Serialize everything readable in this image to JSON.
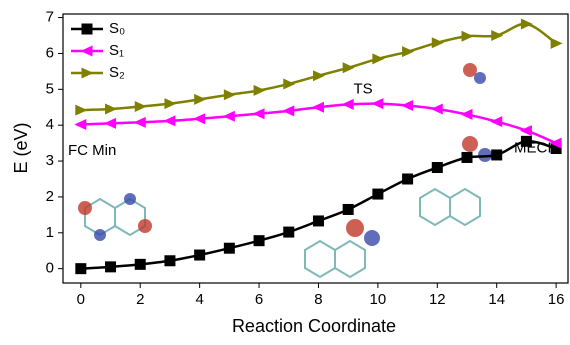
{
  "chart_data": {
    "type": "line",
    "x": [
      0,
      1,
      2,
      3,
      4,
      5,
      6,
      7,
      8,
      9,
      10,
      11,
      12,
      13,
      14,
      15,
      16
    ],
    "series": [
      {
        "name": "S₀",
        "color": "#000000",
        "marker": "square",
        "values": [
          0,
          0.05,
          0.12,
          0.22,
          0.38,
          0.57,
          0.78,
          1.02,
          1.33,
          1.65,
          2.08,
          2.5,
          2.82,
          3.1,
          3.17,
          3.55,
          3.35
        ]
      },
      {
        "name": "S₁",
        "color": "#ff00ff",
        "marker": "triangle-left",
        "values": [
          4.02,
          4.05,
          4.08,
          4.12,
          4.18,
          4.25,
          4.32,
          4.4,
          4.5,
          4.58,
          4.6,
          4.55,
          4.45,
          4.3,
          4.1,
          3.85,
          3.5
        ]
      },
      {
        "name": "S₂",
        "color": "#808000",
        "marker": "triangle-right",
        "values": [
          4.42,
          4.45,
          4.52,
          4.6,
          4.72,
          4.85,
          4.97,
          5.15,
          5.38,
          5.6,
          5.85,
          6.05,
          6.3,
          6.48,
          6.5,
          6.82,
          6.28
        ]
      }
    ],
    "xlabel": "Reaction Coordinate",
    "ylabel": "E (eV)",
    "xlim": [
      -0.6,
      16.4
    ],
    "ylim": [
      -0.4,
      7.1
    ],
    "xticks": [
      0,
      2,
      4,
      6,
      8,
      10,
      12,
      14,
      16
    ],
    "yticks": [
      0,
      1,
      2,
      3,
      4,
      5,
      6,
      7
    ],
    "legend": "upper left",
    "annotations": [
      {
        "text": "TS",
        "color": "#ff00ff"
      },
      {
        "text": "FC Min",
        "color": "#ff00ff"
      },
      {
        "text": "MECI",
        "color": "#000000"
      }
    ]
  }
}
